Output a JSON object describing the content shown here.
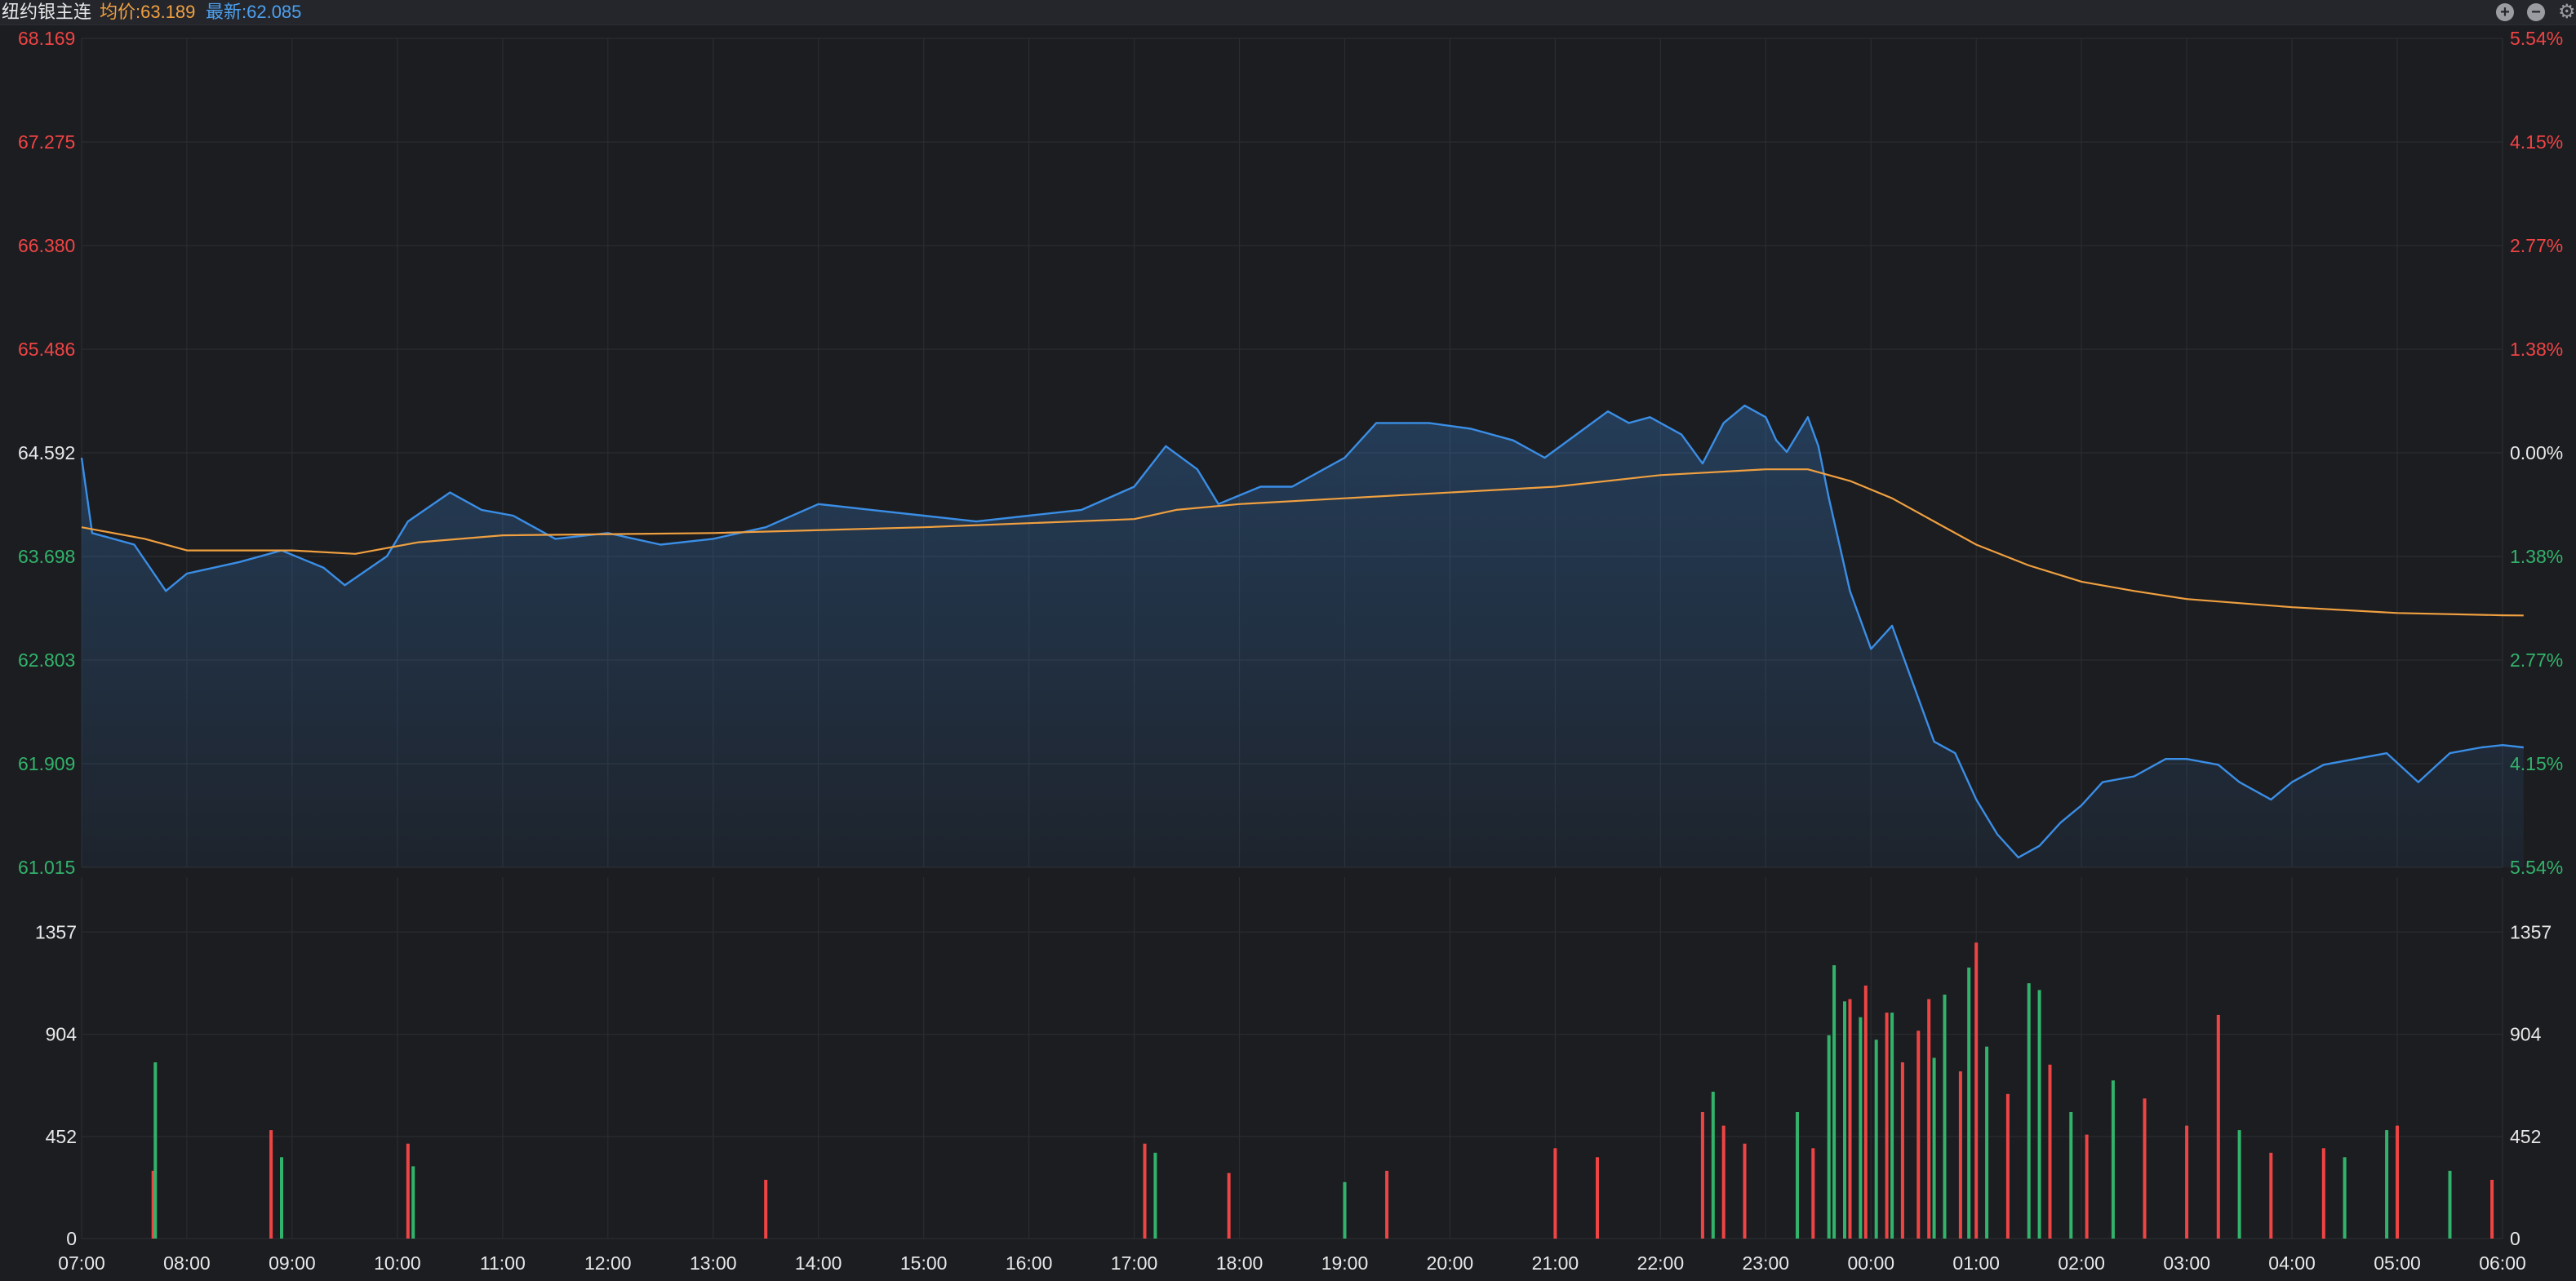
{
  "header": {
    "instrument": "纽约银主连",
    "avg_text": "均价:63.189",
    "last_text": "最新:62.085"
  },
  "icons": {
    "zoom_in": "plus-circle-icon",
    "zoom_out": "minus-circle-icon",
    "settings": "gear-icon"
  },
  "colors": {
    "background": "#1c1d21",
    "price_line": "#3a8ee6",
    "avg_line": "#f0a040",
    "up": "#ef4444",
    "down": "#32b36b",
    "neutral_text": "#e8e8e8",
    "grid": "#2a2c31"
  },
  "chart_data": [
    {
      "type": "line",
      "title": "",
      "ylim": [
        61.015,
        68.169
      ],
      "reference_price": 64.592,
      "y_ticks": [
        "68.169",
        "67.275",
        "66.380",
        "65.486",
        "64.592",
        "63.698",
        "62.803",
        "61.909",
        "61.015"
      ],
      "y_ticks_right": [
        "5.54%",
        "4.15%",
        "2.77%",
        "1.38%",
        "0.00%",
        "1.38%",
        "2.77%",
        "4.15%",
        "5.54%"
      ],
      "x_ticks": [
        "07:00",
        "08:00",
        "09:00",
        "10:00",
        "11:00",
        "12:00",
        "13:00",
        "14:00",
        "15:00",
        "16:00",
        "17:00",
        "18:00",
        "19:00",
        "20:00",
        "21:00",
        "22:00",
        "23:00",
        "00:00",
        "01:00",
        "02:00",
        "03:00",
        "04:00",
        "05:00",
        "06:00"
      ],
      "series": [
        {
          "name": "最新",
          "points": [
            [
              0,
              64.55
            ],
            [
              0.1,
              63.9
            ],
            [
              0.5,
              63.8
            ],
            [
              0.8,
              63.4
            ],
            [
              1.0,
              63.55
            ],
            [
              1.5,
              63.65
            ],
            [
              1.9,
              63.75
            ],
            [
              2.3,
              63.6
            ],
            [
              2.5,
              63.45
            ],
            [
              2.9,
              63.7
            ],
            [
              3.1,
              64.0
            ],
            [
              3.5,
              64.25
            ],
            [
              3.8,
              64.1
            ],
            [
              4.1,
              64.05
            ],
            [
              4.5,
              63.85
            ],
            [
              5.0,
              63.9
            ],
            [
              5.5,
              63.8
            ],
            [
              6.0,
              63.85
            ],
            [
              6.5,
              63.95
            ],
            [
              7.0,
              64.15
            ],
            [
              7.5,
              64.1
            ],
            [
              8.0,
              64.05
            ],
            [
              8.5,
              64.0
            ],
            [
              9.0,
              64.05
            ],
            [
              9.5,
              64.1
            ],
            [
              10.0,
              64.3
            ],
            [
              10.3,
              64.65
            ],
            [
              10.6,
              64.45
            ],
            [
              10.8,
              64.15
            ],
            [
              11.2,
              64.3
            ],
            [
              11.5,
              64.3
            ],
            [
              11.8,
              64.45
            ],
            [
              12.0,
              64.55
            ],
            [
              12.3,
              64.85
            ],
            [
              12.8,
              64.85
            ],
            [
              13.2,
              64.8
            ],
            [
              13.6,
              64.7
            ],
            [
              13.9,
              64.55
            ],
            [
              14.2,
              64.75
            ],
            [
              14.5,
              64.95
            ],
            [
              14.7,
              64.85
            ],
            [
              14.9,
              64.9
            ],
            [
              15.2,
              64.75
            ],
            [
              15.4,
              64.5
            ],
            [
              15.6,
              64.85
            ],
            [
              15.8,
              65.0
            ],
            [
              16.0,
              64.9
            ],
            [
              16.1,
              64.7
            ],
            [
              16.2,
              64.6
            ],
            [
              16.4,
              64.9
            ],
            [
              16.5,
              64.65
            ],
            [
              16.6,
              64.2
            ],
            [
              16.8,
              63.4
            ],
            [
              17.0,
              62.9
            ],
            [
              17.2,
              63.1
            ],
            [
              17.4,
              62.6
            ],
            [
              17.6,
              62.1
            ],
            [
              17.8,
              62.0
            ],
            [
              18.0,
              61.6
            ],
            [
              18.2,
              61.3
            ],
            [
              18.4,
              61.1
            ],
            [
              18.6,
              61.2
            ],
            [
              18.8,
              61.4
            ],
            [
              19.0,
              61.55
            ],
            [
              19.2,
              61.75
            ],
            [
              19.5,
              61.8
            ],
            [
              19.8,
              61.95
            ],
            [
              20.0,
              61.95
            ],
            [
              20.3,
              61.9
            ],
            [
              20.5,
              61.75
            ],
            [
              20.8,
              61.6
            ],
            [
              21.0,
              61.75
            ],
            [
              21.3,
              61.9
            ],
            [
              21.6,
              61.95
            ],
            [
              21.9,
              62.0
            ],
            [
              22.2,
              61.75
            ],
            [
              22.5,
              62.0
            ],
            [
              22.8,
              62.05
            ],
            [
              23.0,
              62.07
            ],
            [
              23.2,
              62.05
            ]
          ]
        },
        {
          "name": "均价",
          "points": [
            [
              0,
              63.95
            ],
            [
              0.6,
              63.85
            ],
            [
              1.0,
              63.75
            ],
            [
              2.0,
              63.75
            ],
            [
              2.6,
              63.72
            ],
            [
              3.2,
              63.82
            ],
            [
              4.0,
              63.88
            ],
            [
              6.0,
              63.9
            ],
            [
              8.0,
              63.95
            ],
            [
              10.0,
              64.02
            ],
            [
              10.4,
              64.1
            ],
            [
              11.0,
              64.15
            ],
            [
              12.0,
              64.2
            ],
            [
              14.0,
              64.3
            ],
            [
              15.0,
              64.4
            ],
            [
              16.0,
              64.45
            ],
            [
              16.4,
              64.45
            ],
            [
              16.8,
              64.35
            ],
            [
              17.2,
              64.2
            ],
            [
              17.6,
              64.0
            ],
            [
              18.0,
              63.8
            ],
            [
              18.5,
              63.62
            ],
            [
              19.0,
              63.48
            ],
            [
              19.5,
              63.4
            ],
            [
              20.0,
              63.33
            ],
            [
              21.0,
              63.26
            ],
            [
              22.0,
              63.21
            ],
            [
              23.0,
              63.19
            ],
            [
              23.2,
              63.189
            ]
          ]
        }
      ]
    },
    {
      "type": "bar",
      "title": "",
      "ylim": [
        0,
        1600
      ],
      "y_ticks": [
        "1357",
        "904",
        "452",
        "0"
      ],
      "bars": [
        {
          "x": 0.68,
          "v": 300,
          "up": true
        },
        {
          "x": 0.7,
          "v": 780,
          "up": false
        },
        {
          "x": 1.8,
          "v": 480,
          "up": true
        },
        {
          "x": 1.9,
          "v": 360,
          "up": false
        },
        {
          "x": 3.1,
          "v": 420,
          "up": true
        },
        {
          "x": 3.15,
          "v": 320,
          "up": false
        },
        {
          "x": 6.5,
          "v": 260,
          "up": true
        },
        {
          "x": 10.1,
          "v": 420,
          "up": true
        },
        {
          "x": 10.2,
          "v": 380,
          "up": false
        },
        {
          "x": 10.9,
          "v": 290,
          "up": true
        },
        {
          "x": 12.0,
          "v": 250,
          "up": false
        },
        {
          "x": 12.4,
          "v": 300,
          "up": true
        },
        {
          "x": 14.0,
          "v": 400,
          "up": true
        },
        {
          "x": 14.4,
          "v": 360,
          "up": true
        },
        {
          "x": 15.4,
          "v": 560,
          "up": true
        },
        {
          "x": 15.5,
          "v": 650,
          "up": false
        },
        {
          "x": 15.6,
          "v": 500,
          "up": true
        },
        {
          "x": 15.8,
          "v": 420,
          "up": true
        },
        {
          "x": 16.3,
          "v": 560,
          "up": false
        },
        {
          "x": 16.45,
          "v": 400,
          "up": true
        },
        {
          "x": 16.6,
          "v": 900,
          "up": false
        },
        {
          "x": 16.65,
          "v": 1210,
          "up": false
        },
        {
          "x": 16.75,
          "v": 1050,
          "up": false
        },
        {
          "x": 16.8,
          "v": 1060,
          "up": true
        },
        {
          "x": 16.9,
          "v": 980,
          "up": false
        },
        {
          "x": 16.95,
          "v": 1120,
          "up": true
        },
        {
          "x": 17.05,
          "v": 880,
          "up": false
        },
        {
          "x": 17.15,
          "v": 1000,
          "up": true
        },
        {
          "x": 17.2,
          "v": 1000,
          "up": false
        },
        {
          "x": 17.3,
          "v": 780,
          "up": true
        },
        {
          "x": 17.45,
          "v": 920,
          "up": true
        },
        {
          "x": 17.55,
          "v": 1060,
          "up": true
        },
        {
          "x": 17.6,
          "v": 800,
          "up": false
        },
        {
          "x": 17.7,
          "v": 1080,
          "up": false
        },
        {
          "x": 17.85,
          "v": 740,
          "up": true
        },
        {
          "x": 17.93,
          "v": 1200,
          "up": false
        },
        {
          "x": 18.0,
          "v": 1310,
          "up": true
        },
        {
          "x": 18.1,
          "v": 850,
          "up": false
        },
        {
          "x": 18.3,
          "v": 640,
          "up": true
        },
        {
          "x": 18.5,
          "v": 1130,
          "up": false
        },
        {
          "x": 18.6,
          "v": 1100,
          "up": false
        },
        {
          "x": 18.7,
          "v": 770,
          "up": true
        },
        {
          "x": 18.9,
          "v": 560,
          "up": false
        },
        {
          "x": 19.05,
          "v": 460,
          "up": true
        },
        {
          "x": 19.3,
          "v": 700,
          "up": false
        },
        {
          "x": 19.6,
          "v": 620,
          "up": true
        },
        {
          "x": 20.0,
          "v": 500,
          "up": true
        },
        {
          "x": 20.3,
          "v": 990,
          "up": true
        },
        {
          "x": 20.5,
          "v": 480,
          "up": false
        },
        {
          "x": 20.8,
          "v": 380,
          "up": true
        },
        {
          "x": 21.3,
          "v": 400,
          "up": true
        },
        {
          "x": 21.5,
          "v": 360,
          "up": false
        },
        {
          "x": 21.9,
          "v": 480,
          "up": false
        },
        {
          "x": 22.0,
          "v": 500,
          "up": true
        },
        {
          "x": 22.5,
          "v": 300,
          "up": false
        },
        {
          "x": 22.9,
          "v": 260,
          "up": true
        }
      ]
    }
  ]
}
